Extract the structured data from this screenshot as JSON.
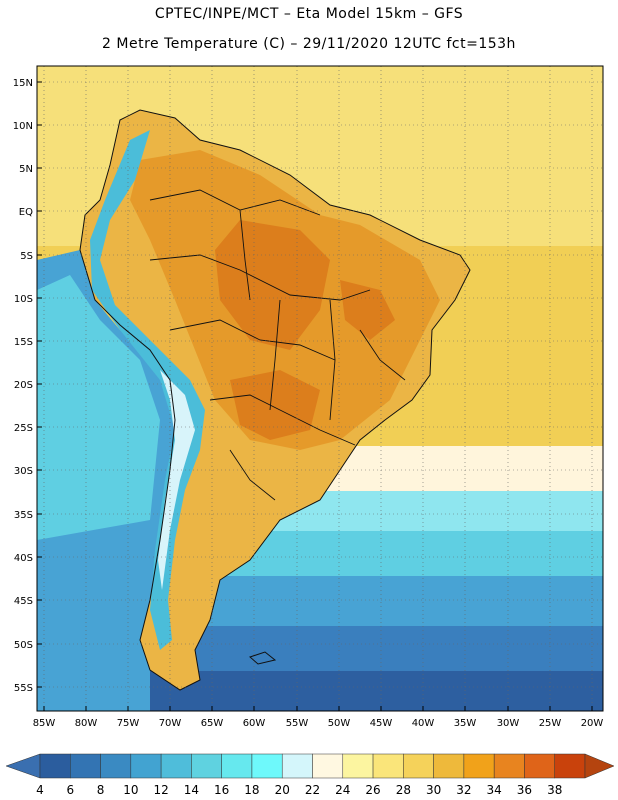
{
  "title": {
    "line1": "CPTEC/INPE/MCT –  Eta Model 15km – GFS",
    "line2": "2 Metre Temperature (C) – 29/11/2020 12UTC fct=153h"
  },
  "axes": {
    "lat_labels": [
      "15N",
      "10N",
      "5N",
      "EQ",
      "5S",
      "10S",
      "15S",
      "20S",
      "25S",
      "30S",
      "35S",
      "40S",
      "45S",
      "50S",
      "55S"
    ],
    "lon_labels": [
      "85W",
      "80W",
      "75W",
      "70W",
      "65W",
      "60W",
      "55W",
      "50W",
      "45W",
      "40W",
      "35W",
      "30W",
      "25W",
      "20W"
    ]
  },
  "colorbar": {
    "ticks": [
      "4",
      "6",
      "8",
      "10",
      "12",
      "14",
      "16",
      "18",
      "20",
      "22",
      "24",
      "26",
      "28",
      "30",
      "32",
      "34",
      "36",
      "38"
    ],
    "colors": [
      "#2b5d9e",
      "#3374b3",
      "#3a8ac2",
      "#42a3d1",
      "#4fbdda",
      "#5fd2e0",
      "#66e8ee",
      "#6ef9fb",
      "#d4f6fb",
      "#fff8e1",
      "#fcf5a0",
      "#fae57a",
      "#f5d25a",
      "#eeb93b",
      "#f1a21a",
      "#e8841f",
      "#df6419",
      "#c9420c"
    ],
    "left_color": "#3a6fb0",
    "right_color": "#b5440f"
  },
  "map_colors": {
    "ocean_south_deep": "#2d5fa0",
    "ocean_south": "#3a7fbe",
    "ocean_mid": "#48a3d4",
    "ocean_cyan": "#5fcfe2",
    "ocean_light": "#8fe6ef",
    "ocean_pale": "#fff5dc",
    "ocean_tropical": "#f6e07a",
    "ocean_warm": "#f1cf55",
    "land_warm": "#ebb545",
    "land_hot": "#e59a2a",
    "land_hotter": "#dc7e1c",
    "andes_cold": "#4bbdd9",
    "andes_snow": "#d8f4fa",
    "border": "#111111"
  }
}
